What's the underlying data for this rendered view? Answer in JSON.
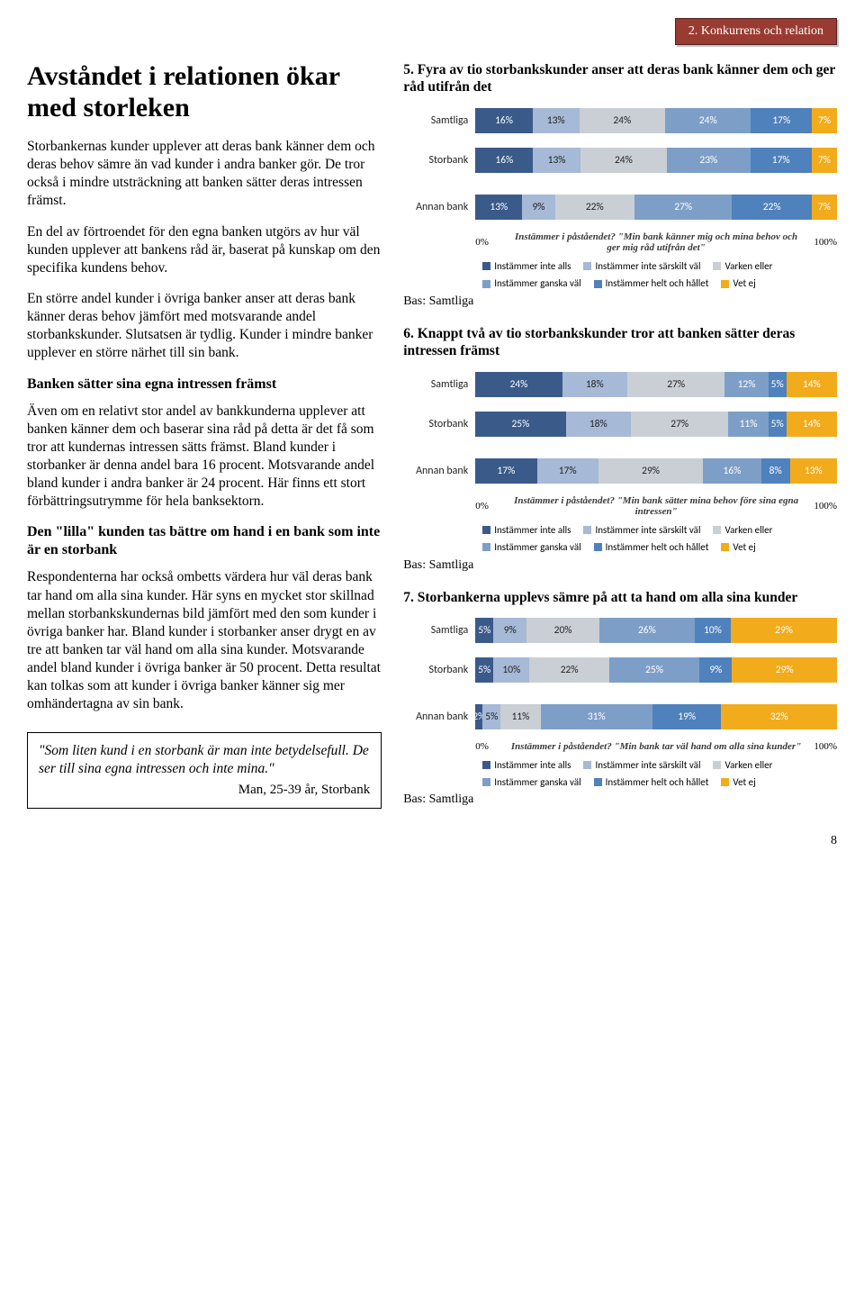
{
  "banner": "2. Konkurrens och relation",
  "left": {
    "heading": "Avståndet i relationen ökar med storleken",
    "p1": "Storbankernas kunder upplever att deras bank känner dem och deras behov sämre än vad kunder i andra banker gör. De tror också i mindre utsträckning att banken sätter deras intressen främst.",
    "p2": "En del av förtroendet för den egna banken utgörs av hur väl kunden upplever att bankens råd är, baserat på kunskap om den specifika kundens behov.",
    "p3": "En större andel kunder i övriga banker anser att deras bank känner deras behov jämfört med motsvarande andel storbankskunder. Slutsatsen är tydlig. Kunder i mindre banker upplever en större närhet till sin bank.",
    "sub1": "Banken sätter sina egna intressen främst",
    "p4": "Även om en relativt stor andel av bankkunderna upplever att banken känner dem och baserar sina råd på detta är det få som tror att kundernas intressen sätts främst. Bland kunder i storbanker är denna andel bara 16 procent. Motsvarande andel bland kunder i andra banker är 24 procent. Här finns ett stort förbättringsutrymme för hela banksektorn.",
    "sub2": "Den \"lilla\" kunden tas bättre om hand i en bank som inte är en storbank",
    "p5": "Respondenterna har också ombetts värdera hur väl deras bank tar hand om alla sina kunder. Här syns en mycket stor skillnad mellan storbankskundernas bild jämfört med den som kunder i övriga banker har. Bland kunder i storbanker anser drygt en av tre att banken tar väl hand om alla sina kunder. Motsvarande andel bland kunder i övriga banker är 50 procent. Detta resultat kan tolkas som att kunder i övriga banker känner sig mer omhändertagna av sin bank.",
    "quote": "\"Som liten kund i en storbank är man inte betydelsefull. De ser till sina egna intressen och inte mina.\"",
    "quote_attr": "Man, 25-39 år, Storbank"
  },
  "series_colors": [
    "#3a5a8a",
    "#a6b9d6",
    "#c9cfd5",
    "#7d9fc7",
    "#4f81bd",
    "#f2ab1b"
  ],
  "series_dark_text": [
    false,
    true,
    true,
    false,
    false,
    false
  ],
  "legend_labels": [
    "Instämmer inte alls",
    "Instämmer inte särskilt väl",
    "Varken eller",
    "Instämmer ganska väl",
    "Instämmer helt och hållet",
    "Vet ej"
  ],
  "axis_0": "0%",
  "axis_100": "100%",
  "bas_label": "Bas: Samtliga",
  "chart5": {
    "title": "5. Fyra av tio storbankskunder anser att deras bank känner dem och ger råd utifrån det",
    "question": "Instämmer i påståendet? \"Min bank känner mig och mina behov och ger mig råd utifrån det\"",
    "rows": [
      {
        "label": "Samtliga",
        "vals": [
          16,
          13,
          24,
          24,
          17,
          7
        ]
      },
      {
        "label": "Storbank",
        "vals": [
          16,
          13,
          24,
          23,
          17,
          7
        ]
      },
      {
        "label": "Annan bank",
        "vals": [
          13,
          9,
          22,
          27,
          22,
          7
        ]
      }
    ]
  },
  "chart6": {
    "title": "6. Knappt två av tio storbankskunder tror att banken sätter deras intressen främst",
    "question": "Instämmer i påståendet? \"Min bank sätter mina behov före sina egna intressen\"",
    "rows": [
      {
        "label": "Samtliga",
        "vals": [
          24,
          18,
          27,
          12,
          5,
          14
        ]
      },
      {
        "label": "Storbank",
        "vals": [
          25,
          18,
          27,
          11,
          5,
          14
        ]
      },
      {
        "label": "Annan bank",
        "vals": [
          17,
          17,
          29,
          16,
          8,
          13
        ]
      }
    ]
  },
  "chart7": {
    "title": "7. Storbankerna upplevs sämre på att ta hand om alla sina kunder",
    "question": "Instämmer i påståendet? \"Min bank tar väl hand om alla sina kunder\"",
    "rows": [
      {
        "label": "Samtliga",
        "vals": [
          5,
          9,
          20,
          26,
          10,
          29
        ]
      },
      {
        "label": "Storbank",
        "vals": [
          5,
          10,
          22,
          25,
          9,
          29
        ]
      },
      {
        "label": "Annan bank",
        "vals": [
          2,
          5,
          11,
          31,
          19,
          32
        ]
      }
    ]
  },
  "page_number": "8"
}
